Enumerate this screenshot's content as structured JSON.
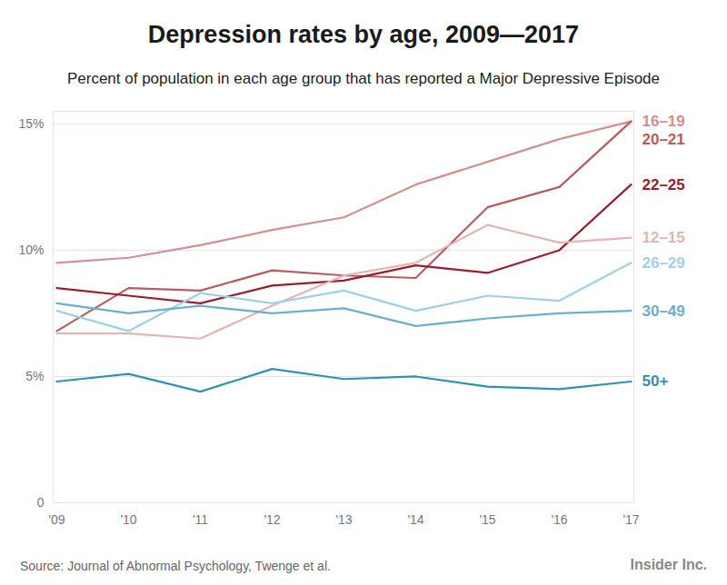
{
  "chart_data": {
    "type": "line",
    "title": "Depression rates by age, 2009—2017",
    "subtitle": "Percent of population in each age group that has reported a Major Depressive Episode",
    "source": "Source: Journal of Abnormal Psychology, Twenge et al.",
    "credit": "Insider Inc.",
    "categories": [
      "'09",
      "'10",
      "'11",
      "'12",
      "'13",
      "'14",
      "'15",
      "'16",
      "'17"
    ],
    "series": [
      {
        "name": "16–19",
        "color": "#d4908f",
        "values": [
          9.5,
          9.7,
          10.2,
          10.8,
          11.3,
          12.6,
          13.5,
          14.4,
          15.1
        ]
      },
      {
        "name": "20–21",
        "color": "#b85c5f",
        "values": [
          6.8,
          8.5,
          8.4,
          9.2,
          9.0,
          8.9,
          11.7,
          12.5,
          15.1
        ]
      },
      {
        "name": "22–25",
        "color": "#9b1c2c",
        "values": [
          8.5,
          8.2,
          7.9,
          8.6,
          8.8,
          9.4,
          9.1,
          10.0,
          12.6
        ]
      },
      {
        "name": "12–15",
        "color": "#e6b3b3",
        "values": [
          6.7,
          6.7,
          6.5,
          7.8,
          9.0,
          9.5,
          11.0,
          10.3,
          10.5
        ]
      },
      {
        "name": "26–29",
        "color": "#9fd0e6",
        "values": [
          7.6,
          6.8,
          8.3,
          7.9,
          8.4,
          7.6,
          8.2,
          8.0,
          9.5
        ]
      },
      {
        "name": "30–49",
        "color": "#6bafcd",
        "values": [
          7.9,
          7.5,
          7.8,
          7.5,
          7.7,
          7.0,
          7.3,
          7.5,
          7.6
        ]
      },
      {
        "name": "50+",
        "color": "#2e93b0",
        "values": [
          4.8,
          5.1,
          4.4,
          5.3,
          4.9,
          5.0,
          4.6,
          4.5,
          4.8
        ]
      }
    ],
    "ylim": [
      0,
      15.5
    ],
    "yticks": [
      0,
      {
        "value": 5,
        "label": "5%"
      },
      {
        "value": 10,
        "label": "10%"
      },
      {
        "value": 15,
        "label": "15%"
      }
    ],
    "grid": true
  }
}
